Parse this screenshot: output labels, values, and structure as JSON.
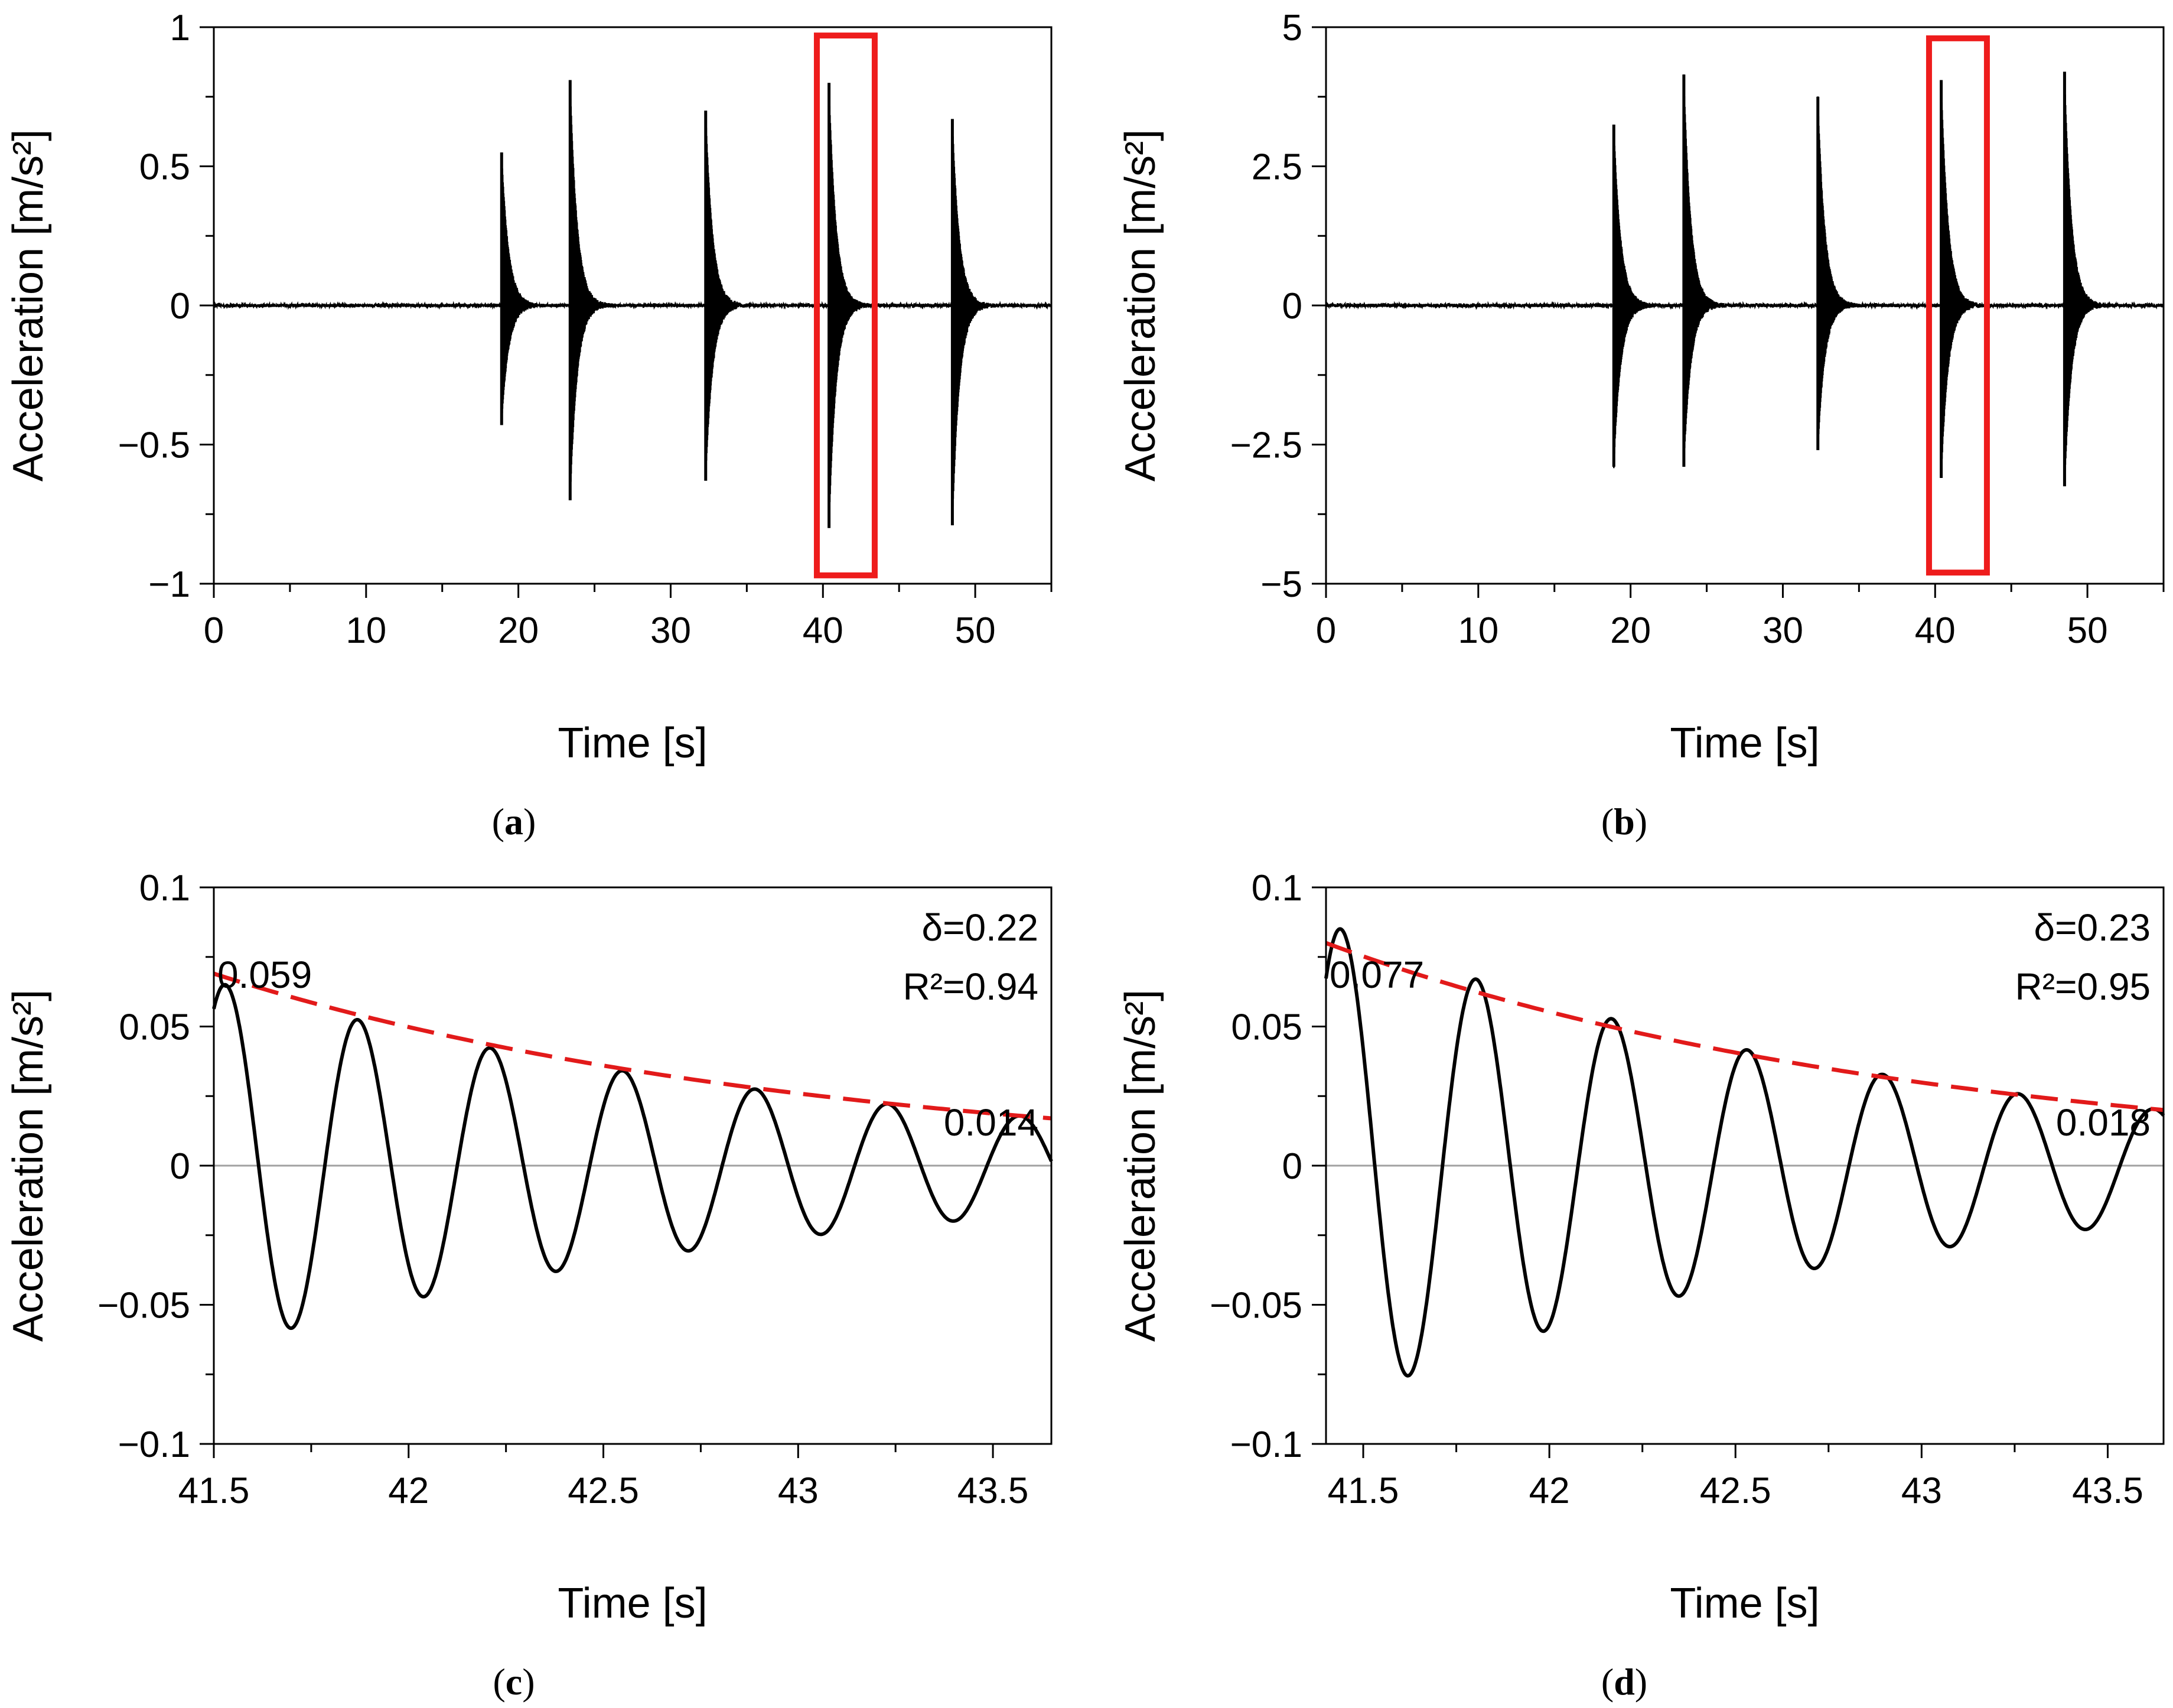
{
  "chart_data": [
    {
      "id": "a",
      "type": "line",
      "caption_letter": "a",
      "xlabel": "Time [s]",
      "ylabel": "Acceleration [m/s²]",
      "xlim": [
        0,
        55
      ],
      "ylim": [
        -1,
        1
      ],
      "xticks": [
        0,
        10,
        20,
        30,
        40,
        50
      ],
      "xtick_labels": [
        "0",
        "10",
        "20",
        "30",
        "40",
        "50"
      ],
      "yticks": [
        -1,
        -0.5,
        0,
        0.5,
        1
      ],
      "ytick_labels": [
        "−1",
        "−0.5",
        "0",
        "0.5",
        "1"
      ],
      "impulses": [
        {
          "t": 18.9,
          "peak": 0.55,
          "trough": -0.43
        },
        {
          "t": 23.4,
          "peak": 0.81,
          "trough": -0.7
        },
        {
          "t": 32.3,
          "peak": 0.7,
          "trough": -0.63
        },
        {
          "t": 40.4,
          "peak": 0.8,
          "trough": -0.8
        },
        {
          "t": 48.5,
          "peak": 0.67,
          "trough": -0.79
        }
      ],
      "highlight": {
        "x0": 39.6,
        "x1": 43.4,
        "y0": -0.97,
        "y1": 0.97,
        "color": "#ee1c1c"
      }
    },
    {
      "id": "b",
      "type": "line",
      "caption_letter": "b",
      "xlabel": "Time [s]",
      "ylabel": "Acceleration [m/s²]",
      "xlim": [
        0,
        55
      ],
      "ylim": [
        -5,
        5
      ],
      "xticks": [
        0,
        10,
        20,
        30,
        40,
        50
      ],
      "xtick_labels": [
        "0",
        "10",
        "20",
        "30",
        "40",
        "50"
      ],
      "yticks": [
        -5,
        -2.5,
        0,
        2.5,
        5
      ],
      "ytick_labels": [
        "−5",
        "−2.5",
        "0",
        "2.5",
        "5"
      ],
      "impulses": [
        {
          "t": 18.9,
          "peak": 3.25,
          "trough": -2.9
        },
        {
          "t": 23.5,
          "peak": 4.15,
          "trough": -2.9
        },
        {
          "t": 32.3,
          "peak": 3.75,
          "trough": -2.6
        },
        {
          "t": 40.4,
          "peak": 4.05,
          "trough": -3.1
        },
        {
          "t": 48.5,
          "peak": 4.2,
          "trough": -3.25
        }
      ],
      "highlight": {
        "x0": 39.6,
        "x1": 43.4,
        "y0": -4.8,
        "y1": 4.8,
        "color": "#ee1c1c"
      }
    },
    {
      "id": "c",
      "type": "line",
      "caption_letter": "c",
      "xlabel": "Time [s]",
      "ylabel": "Acceleration [m/s²]",
      "xlim": [
        41.5,
        43.65
      ],
      "ylim": [
        -0.1,
        0.1
      ],
      "xticks": [
        41.5,
        42,
        42.5,
        43,
        43.5
      ],
      "xtick_labels": [
        "41.5",
        "42",
        "42.5",
        "43",
        "43.5"
      ],
      "yticks": [
        -0.1,
        -0.05,
        0,
        0.05,
        0.1
      ],
      "ytick_labels": [
        "−0.1",
        "−0.05",
        "0",
        "0.05",
        "0.1"
      ],
      "signal": {
        "t0": 41.5,
        "amp0": 0.065,
        "period": 0.34,
        "first_peak": 41.53,
        "envelope_end": 0.017
      },
      "envelope": {
        "y_start": 0.069,
        "y_end": 0.017,
        "color": "#e21a1a"
      },
      "annotations": {
        "delta": "δ=0.22",
        "r2": "R²=0.94",
        "first_peak_label": "0.059",
        "last_peak_label": "0.014"
      }
    },
    {
      "id": "d",
      "type": "line",
      "caption_letter": "d",
      "xlabel": "Time [s]",
      "ylabel": "Acceleration [m/s²]",
      "xlim": [
        41.4,
        43.65
      ],
      "ylim": [
        -0.1,
        0.1
      ],
      "xticks": [
        41.5,
        42,
        42.5,
        43,
        43.5
      ],
      "xtick_labels": [
        "41.5",
        "42",
        "42.5",
        "43",
        "43.5"
      ],
      "yticks": [
        -0.1,
        -0.05,
        0,
        0.05,
        0.1
      ],
      "ytick_labels": [
        "−0.1",
        "−0.05",
        "0",
        "0.05",
        "0.1"
      ],
      "signal": {
        "t0": 41.4,
        "amp0": 0.085,
        "period": 0.364,
        "first_peak": 41.44,
        "envelope_end": 0.02
      },
      "envelope": {
        "y_start": 0.08,
        "y_end": 0.02,
        "color": "#e21a1a"
      },
      "annotations": {
        "delta": "δ=0.23",
        "r2": "R²=0.95",
        "first_peak_label": "0.077",
        "last_peak_label": "0.018"
      }
    }
  ]
}
